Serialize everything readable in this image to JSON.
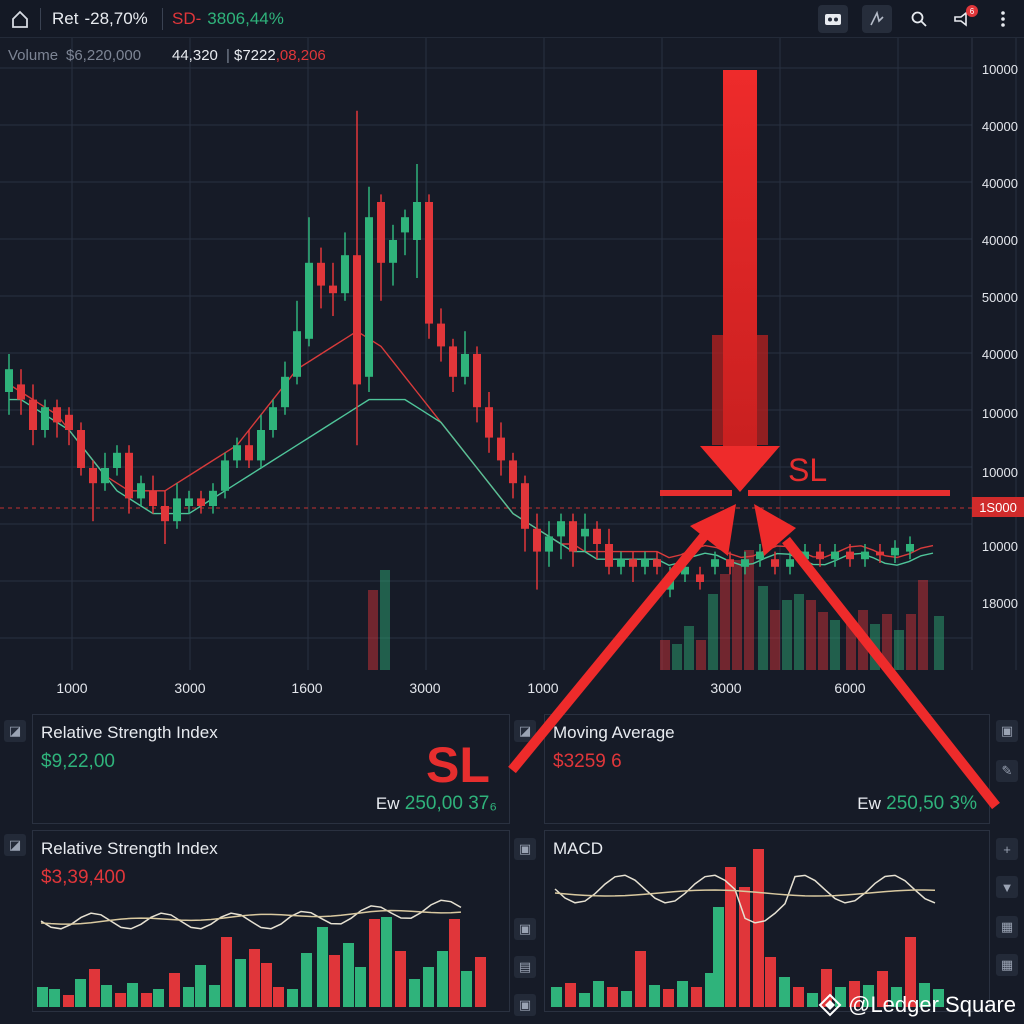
{
  "topbar": {
    "ret_label": "Ret",
    "ret_value": "-28,70%",
    "sd_label": "SD-",
    "sd_value": "3806,44%",
    "icons": [
      "home-icon",
      "camera-icon",
      "drawing-tool-icon",
      "search-icon",
      "alert-icon",
      "more-icon"
    ],
    "alert_badge": "6"
  },
  "volume_row": {
    "label": "Volume",
    "volume_value": "$6,220,000",
    "value2": "44,320",
    "value3_prefix": "$7222",
    "value3_suffix": ",08,206"
  },
  "y_axis": [
    "10000",
    "40000",
    "40000",
    "40000",
    "50000",
    "40000",
    "10000",
    "10000",
    "10000",
    "18000"
  ],
  "current_price": "1S000",
  "x_axis": [
    "1000",
    "3000",
    "1600",
    "3000",
    "1000",
    "3000",
    "6000"
  ],
  "annotations": {
    "sl_chart": "SL",
    "sl_big": "SL"
  },
  "panels": {
    "rsi_top": {
      "title": "Relative Strength Index",
      "value": "$9,22,00",
      "foot_label": "Ew",
      "foot_value": "250,00 37₆"
    },
    "ma": {
      "title": "Moving Average",
      "value": "$3259  6",
      "foot_label": "Ew",
      "foot_value": "250,50 3%"
    },
    "rsi_bottom": {
      "title": "Relative Strength Index",
      "value": "$3,39,400"
    },
    "macd": {
      "title": "MACD"
    }
  },
  "watermark": "@Ledger Square",
  "colors": {
    "up": "#2fb37b",
    "down": "#e0363a",
    "grid": "#283041",
    "bg": "#161b27",
    "arrow": "#ee2b2b"
  },
  "chart_data": {
    "type": "candlestick",
    "candles": [
      {
        "o": 10,
        "c": 13,
        "h": 15,
        "l": 7
      },
      {
        "o": 11,
        "c": 9,
        "h": 13,
        "l": 7
      },
      {
        "o": 9,
        "c": 5,
        "h": 11,
        "l": 3
      },
      {
        "o": 5,
        "c": 8,
        "h": 9,
        "l": 4
      },
      {
        "o": 8,
        "c": 6,
        "h": 9,
        "l": 4
      },
      {
        "o": 7,
        "c": 5,
        "h": 8,
        "l": 3
      },
      {
        "o": 5,
        "c": 0,
        "h": 6,
        "l": -1
      },
      {
        "o": 0,
        "c": -2,
        "h": 1,
        "l": -7
      },
      {
        "o": -2,
        "c": 0,
        "h": 2,
        "l": -3
      },
      {
        "o": 0,
        "c": 2,
        "h": 3,
        "l": -1
      },
      {
        "o": 2,
        "c": -4,
        "h": 3,
        "l": -6
      },
      {
        "o": -4,
        "c": -2,
        "h": -1,
        "l": -5
      },
      {
        "o": -3,
        "c": -5,
        "h": -1,
        "l": -6
      },
      {
        "o": -5,
        "c": -7,
        "h": -3,
        "l": -10
      },
      {
        "o": -7,
        "c": -4,
        "h": -2,
        "l": -8
      },
      {
        "o": -5,
        "c": -4,
        "h": -3,
        "l": -6
      },
      {
        "o": -4,
        "c": -5,
        "h": -3,
        "l": -6
      },
      {
        "o": -5,
        "c": -3,
        "h": -2,
        "l": -6
      },
      {
        "o": -3,
        "c": 1,
        "h": 2,
        "l": -4
      },
      {
        "o": 1,
        "c": 3,
        "h": 4,
        "l": 0
      },
      {
        "o": 3,
        "c": 1,
        "h": 5,
        "l": 0
      },
      {
        "o": 1,
        "c": 5,
        "h": 7,
        "l": 0
      },
      {
        "o": 5,
        "c": 8,
        "h": 9,
        "l": 4
      },
      {
        "o": 8,
        "c": 12,
        "h": 14,
        "l": 7
      },
      {
        "o": 12,
        "c": 18,
        "h": 22,
        "l": 11
      },
      {
        "o": 17,
        "c": 27,
        "h": 33,
        "l": 16
      },
      {
        "o": 27,
        "c": 24,
        "h": 29,
        "l": 21
      },
      {
        "o": 24,
        "c": 23,
        "h": 27,
        "l": 20
      },
      {
        "o": 23,
        "c": 28,
        "h": 31,
        "l": 22
      },
      {
        "o": 28,
        "c": 11,
        "h": 47,
        "l": 3
      },
      {
        "o": 12,
        "c": 33,
        "h": 37,
        "l": 10
      },
      {
        "o": 35,
        "c": 27,
        "h": 36,
        "l": 22
      },
      {
        "o": 27,
        "c": 30,
        "h": 32,
        "l": 24
      },
      {
        "o": 31,
        "c": 33,
        "h": 34,
        "l": 28
      },
      {
        "o": 30,
        "c": 35,
        "h": 40,
        "l": 25
      },
      {
        "o": 35,
        "c": 19,
        "h": 36,
        "l": 17
      },
      {
        "o": 19,
        "c": 16,
        "h": 21,
        "l": 14
      },
      {
        "o": 16,
        "c": 12,
        "h": 17,
        "l": 10
      },
      {
        "o": 12,
        "c": 15,
        "h": 18,
        "l": 11
      },
      {
        "o": 15,
        "c": 8,
        "h": 16,
        "l": 6
      },
      {
        "o": 8,
        "c": 4,
        "h": 10,
        "l": 2
      },
      {
        "o": 4,
        "c": 1,
        "h": 6,
        "l": -1
      },
      {
        "o": 1,
        "c": -2,
        "h": 2,
        "l": -4
      },
      {
        "o": -2,
        "c": -8,
        "h": -1,
        "l": -11
      },
      {
        "o": -8,
        "c": -11,
        "h": -6,
        "l": -16
      },
      {
        "o": -11,
        "c": -9,
        "h": -7,
        "l": -13
      },
      {
        "o": -9,
        "c": -7,
        "h": -6,
        "l": -12
      },
      {
        "o": -7,
        "c": -11,
        "h": -6,
        "l": -13
      },
      {
        "o": -9,
        "c": -8,
        "h": -6,
        "l": -11
      },
      {
        "o": -8,
        "c": -10,
        "h": -7,
        "l": -12
      },
      {
        "o": -10,
        "c": -13,
        "h": -8,
        "l": -14
      },
      {
        "o": -13,
        "c": -12,
        "h": -11,
        "l": -14
      },
      {
        "o": -12,
        "c": -13,
        "h": -11,
        "l": -15
      },
      {
        "o": -13,
        "c": -12,
        "h": -11,
        "l": -14
      },
      {
        "o": -12,
        "c": -13,
        "h": -11,
        "l": -14
      }
    ],
    "ma_red": [
      11,
      10,
      9,
      8,
      7,
      5,
      3,
      1,
      -1,
      -2,
      -3,
      -3,
      -3,
      -3,
      -2,
      -1,
      0,
      1,
      2,
      3,
      5,
      7,
      9,
      11,
      13,
      14,
      15,
      16,
      17,
      18,
      17,
      16,
      14,
      12,
      10,
      8,
      6,
      4,
      2,
      0,
      -2,
      -4,
      -6,
      -7,
      -8,
      -9,
      -10,
      -10,
      -11,
      -11,
      -11,
      -11,
      -11,
      -11,
      -11
    ],
    "ma_green": [
      9,
      9,
      8,
      7,
      6,
      5,
      3,
      1,
      -1,
      -3,
      -4,
      -5,
      -6,
      -6,
      -6,
      -6,
      -5,
      -4,
      -3,
      -2,
      -1,
      0,
      1,
      2,
      3,
      4,
      5,
      6,
      7,
      8,
      9,
      9,
      9,
      9,
      8,
      7,
      6,
      4,
      2,
      0,
      -2,
      -4,
      -6,
      -7,
      -8,
      -9,
      -10,
      -11,
      -11,
      -12,
      -12,
      -12,
      -12,
      -12,
      -12
    ]
  }
}
